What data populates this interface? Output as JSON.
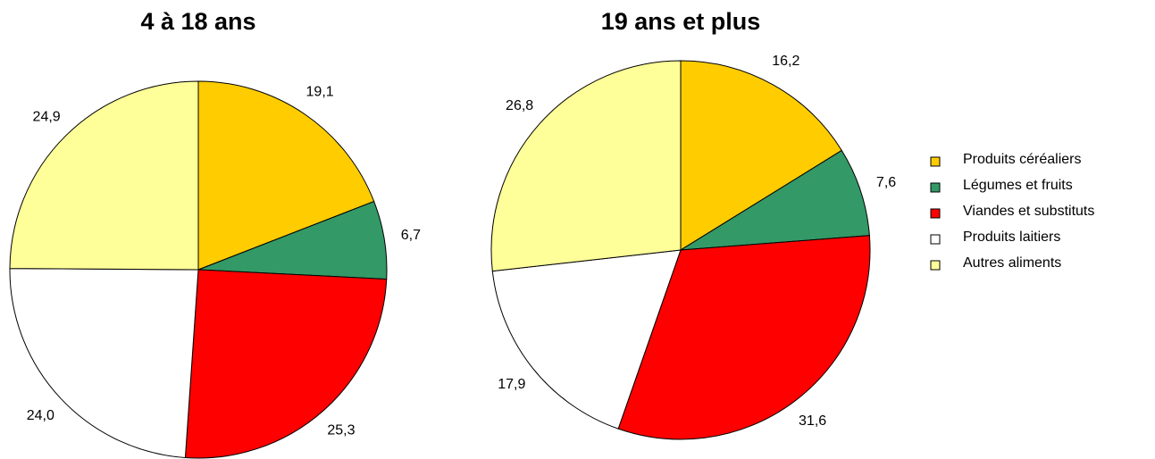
{
  "legend": {
    "categories": [
      "Produits céréaliers",
      "Légumes et fruits",
      "Viandes et substituts",
      "Produits laitiers",
      "Autres aliments"
    ],
    "colors": [
      "#FFCC00",
      "#339966",
      "#FF0000",
      "#FFFFFF",
      "#FFFF99"
    ]
  },
  "chart_data": [
    {
      "type": "pie",
      "title": "4 à 18 ans",
      "values": [
        19.1,
        6.7,
        25.3,
        24.0,
        24.9
      ],
      "value_labels": [
        "19,1",
        "6,7",
        "25,3",
        "24,0",
        "24,9"
      ]
    },
    {
      "type": "pie",
      "title": "19 ans et plus",
      "values": [
        16.2,
        7.6,
        31.6,
        17.9,
        26.8
      ],
      "value_labels": [
        "16,2",
        "7,6",
        "31,6",
        "17,9",
        "26,8"
      ]
    }
  ]
}
